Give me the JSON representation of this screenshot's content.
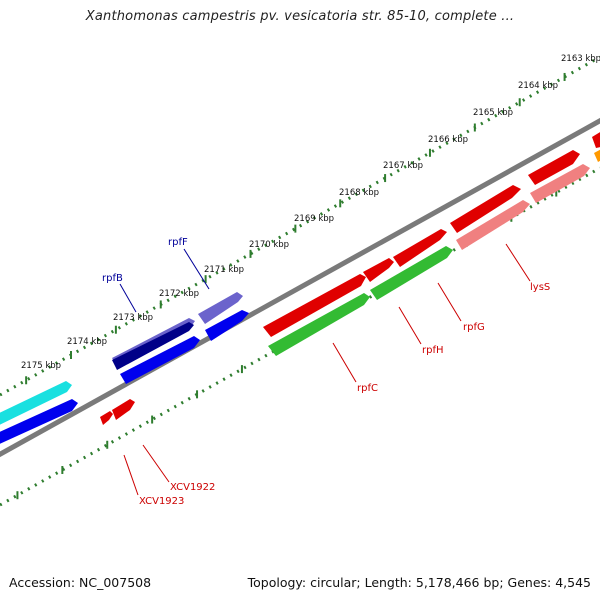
{
  "header": {
    "title": "Xanthomonas campestris pv. vesicatoria str. 85-10, complete ..."
  },
  "footer": {
    "accession": "Accession: NC_007508",
    "summary": "Topology: circular; Length: 5,178,466 bp; Genes: 4,545"
  },
  "ruler": {
    "labels": [
      "2163 kbp",
      "2164 kbp",
      "2165 kbp",
      "2166 kbp",
      "2167 kbp",
      "2168 kbp",
      "2169 kbp",
      "2170 kbp",
      "2171 kbp",
      "2172 kbp",
      "2173 kbp",
      "2174 kbp",
      "2175 kbp"
    ]
  },
  "genes": {
    "rpfF": "rpfF",
    "rpfB": "rpfB",
    "rpfC": "rpfC",
    "rpfH": "rpfH",
    "rpfG": "rpfG",
    "lysS": "lysS",
    "XCV1922": "XCV1922",
    "XCV1923": "XCV1923"
  },
  "colors": {
    "backbone": "#777777",
    "ticks": "#2f7d2f",
    "red": "#e00000",
    "pink": "#f08080",
    "green": "#33bb33",
    "orange": "#ff9900",
    "blue": "#0000ee",
    "navy": "#000088",
    "purple": "#6b63cc",
    "cyan": "#19e0e0",
    "label_blue": "#000099",
    "label_red": "#cc0000"
  }
}
